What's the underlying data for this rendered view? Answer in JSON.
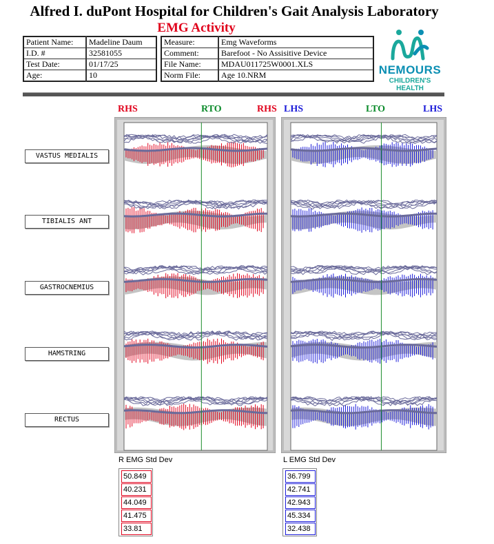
{
  "header": {
    "title": "Alfred I. duPont Hospital for Children's Gait Analysis Laboratory",
    "subtitle": "EMG Activity"
  },
  "patient": {
    "rows": [
      {
        "label": "Patient Name:",
        "value": "Madeline Daum"
      },
      {
        "label": "I.D. #",
        "value": "32581055"
      },
      {
        "label": "Test Date:",
        "value": "01/17/25"
      },
      {
        "label": "Age:",
        "value": "10"
      }
    ]
  },
  "test": {
    "rows": [
      {
        "label": "Measure:",
        "value": "Emg Waveforms"
      },
      {
        "label": "Comment:",
        "value": "Barefoot - No Assisitive Device"
      },
      {
        "label": "File Name:",
        "value": "MDAU011725W0001.XLS"
      },
      {
        "label": "Norm File:",
        "value": "Age 10.NRM"
      }
    ]
  },
  "logo": {
    "brand": "NEMOURS",
    "sub": "CHILDREN'S HEALTH"
  },
  "chart_data": {
    "type": "line",
    "events": {
      "right": {
        "start": "RHS",
        "toe_off": "RTO",
        "end": "RHS"
      },
      "left": {
        "start": "LHS",
        "toe_off": "LTO",
        "end": "LHS"
      }
    },
    "muscles": [
      "VASTUS MEDIALIS",
      "TIBIALIS ANT",
      "GASTROCNEMIUS",
      "HAMSTRING",
      "RECTUS"
    ],
    "toe_off_percent": {
      "right": 54,
      "left": 62
    },
    "right_emg_std_dev_label": "R EMG Std Dev",
    "left_emg_std_dev_label": "L EMG Std Dev",
    "right_emg_std_dev": [
      "50.849",
      "40.231",
      "44.049",
      "41.475",
      "33.81"
    ],
    "left_emg_std_dev": [
      "36.799",
      "42.741",
      "42.943",
      "45.334",
      "32.438"
    ],
    "colors": {
      "right": "#e0001b",
      "left": "#1a1ad8",
      "norm_band": "#c4c4c4",
      "norm_line": "#6a6a9a",
      "toe_off_line": "#1a8a2a"
    }
  }
}
